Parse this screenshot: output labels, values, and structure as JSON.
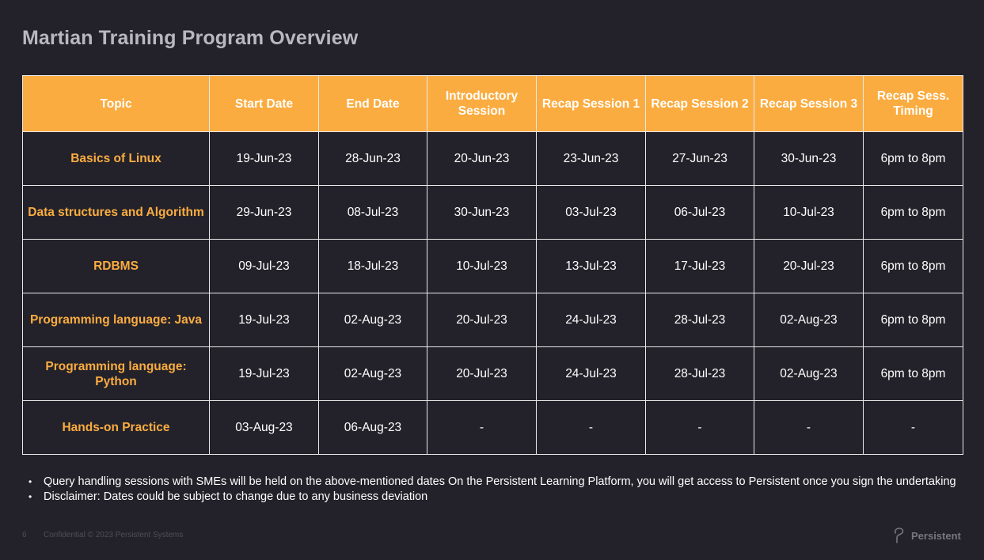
{
  "slide": {
    "title": "Martian Training Program Overview"
  },
  "table": {
    "headers": [
      "Topic",
      "Start Date",
      "End Date",
      "Introductory Session",
      "Recap Session 1",
      "Recap Session 2",
      "Recap Session 3",
      "Recap Sess. Timing"
    ],
    "rows": [
      {
        "topic": "Basics of Linux",
        "cells": [
          "19-Jun-23",
          "28-Jun-23",
          "20-Jun-23",
          "23-Jun-23",
          "27-Jun-23",
          "30-Jun-23",
          "6pm to 8pm"
        ]
      },
      {
        "topic": "Data structures and Algorithm",
        "cells": [
          "29-Jun-23",
          "08-Jul-23",
          "30-Jun-23",
          "03-Jul-23",
          "06-Jul-23",
          "10-Jul-23",
          "6pm to 8pm"
        ]
      },
      {
        "topic": "RDBMS",
        "cells": [
          "09-Jul-23",
          "18-Jul-23",
          "10-Jul-23",
          "13-Jul-23",
          "17-Jul-23",
          "20-Jul-23",
          "6pm to 8pm"
        ]
      },
      {
        "topic": "Programming language: Java",
        "cells": [
          "19-Jul-23",
          "02-Aug-23",
          "20-Jul-23",
          "24-Jul-23",
          "28-Jul-23",
          "02-Aug-23",
          "6pm to 8pm"
        ]
      },
      {
        "topic": "Programming language: Python",
        "cells": [
          "19-Jul-23",
          "02-Aug-23",
          "20-Jul-23",
          "24-Jul-23",
          "28-Jul-23",
          "02-Aug-23",
          "6pm to 8pm"
        ]
      },
      {
        "topic": "Hands-on Practice",
        "cells": [
          "03-Aug-23",
          "06-Aug-23",
          "-",
          "-",
          "-",
          "-",
          "-"
        ]
      }
    ]
  },
  "notes": [
    "Query handling sessions with SMEs  will be held on the above-mentioned dates On the Persistent  Learning Platform, you will get access to Persistent  once you sign the undertaking",
    "Disclaimer: Dates could be subject to change due to any business deviation"
  ],
  "footer": {
    "page_number": "6",
    "confidential": "Confidential © 2023 Persistent Systems",
    "logo_text": "Persistent",
    "logo_icon": "persistent-logo-icon"
  },
  "colors": {
    "background": "#23222a",
    "header_fill": "#fbac40",
    "topic_text": "#fbac40",
    "grid_lines": "#e8e8e8"
  }
}
